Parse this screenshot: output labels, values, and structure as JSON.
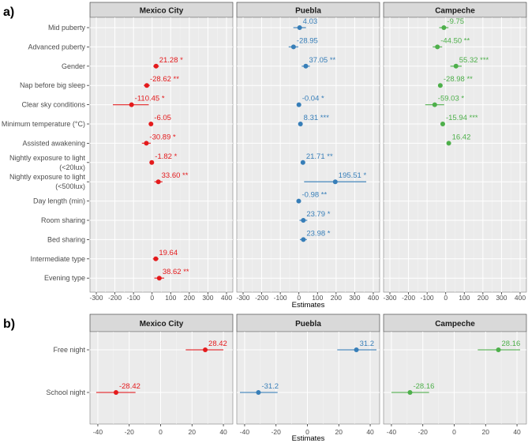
{
  "colors": {
    "Mexico City": "#E41A1C",
    "Puebla": "#377EB8",
    "Campeche": "#4DAF4A"
  },
  "chart_data": [
    {
      "panel_label": "a)",
      "type": "forest",
      "xlabel": "Estimates",
      "xlim": [
        -334,
        434
      ],
      "xticks": [
        -300,
        -200,
        -100,
        0,
        100,
        200,
        300,
        400
      ],
      "grid": true,
      "rows": [
        [
          "Mid puberty"
        ],
        [
          "Advanced puberty"
        ],
        [
          "Gender"
        ],
        [
          "Nap before big sleep"
        ],
        [
          "Clear sky conditions"
        ],
        [
          "Minimum temperature (°C)"
        ],
        [
          "Assisted awakening"
        ],
        [
          "Nightly exposure to light",
          "(<20lux)"
        ],
        [
          "Nightly exposure to light",
          "(<500lux)"
        ],
        [
          "Day length (min)"
        ],
        [
          "Room sharing"
        ],
        [
          "Bed sharing"
        ],
        [
          "Intermediate type"
        ],
        [
          "Evening type"
        ]
      ],
      "facets": [
        {
          "name": "Mexico City",
          "points": [
            {
              "row": 2,
              "est": 21.28,
              "lo": 6,
              "hi": 37,
              "label": "21.28 *"
            },
            {
              "row": 3,
              "est": -28.62,
              "lo": -45,
              "hi": -12,
              "label": "-28.62 **"
            },
            {
              "row": 4,
              "est": -110.45,
              "lo": -211,
              "hi": -18,
              "label": "-110.45 *"
            },
            {
              "row": 5,
              "est": -6.05,
              "lo": -12,
              "hi": 0,
              "label": "-6.05"
            },
            {
              "row": 6,
              "est": -30.89,
              "lo": -55,
              "hi": -7,
              "label": "-30.89 *"
            },
            {
              "row": 7,
              "est": -1.82,
              "lo": -5,
              "hi": 1,
              "label": "-1.82 *"
            },
            {
              "row": 8,
              "est": 33.6,
              "lo": 12,
              "hi": 56,
              "label": "33.60 **"
            },
            {
              "row": 12,
              "est": 19.64,
              "lo": 4,
              "hi": 35,
              "label": "19.64"
            },
            {
              "row": 13,
              "est": 38.62,
              "lo": 12,
              "hi": 65,
              "label": "38.62 **"
            }
          ]
        },
        {
          "name": "Puebla",
          "points": [
            {
              "row": 0,
              "est": 4.03,
              "lo": -30,
              "hi": 38,
              "label": "4.03"
            },
            {
              "row": 1,
              "est": -28.95,
              "lo": -55,
              "hi": -3,
              "label": "-28.95"
            },
            {
              "row": 2,
              "est": 37.05,
              "lo": 15,
              "hi": 59,
              "label": "37.05 **"
            },
            {
              "row": 4,
              "est": -0.04,
              "lo": -1,
              "hi": 1,
              "label": "-0.04 *"
            },
            {
              "row": 5,
              "est": 8.31,
              "lo": 6,
              "hi": 11,
              "label": "8.31 ***"
            },
            {
              "row": 7,
              "est": 21.71,
              "lo": 12,
              "hi": 32,
              "label": "21.71 **"
            },
            {
              "row": 8,
              "est": 195.51,
              "lo": 28,
              "hi": 362,
              "label": "195.51 *"
            },
            {
              "row": 9,
              "est": -0.98,
              "lo": -2,
              "hi": 0,
              "label": "-0.98 **"
            },
            {
              "row": 10,
              "est": 23.79,
              "lo": 3,
              "hi": 45,
              "label": "23.79 *"
            },
            {
              "row": 11,
              "est": 23.98,
              "lo": 5,
              "hi": 43,
              "label": "23.98 *"
            }
          ]
        },
        {
          "name": "Campeche",
          "points": [
            {
              "row": 0,
              "est": -9.75,
              "lo": -35,
              "hi": 15,
              "label": "-9.75"
            },
            {
              "row": 1,
              "est": -44.5,
              "lo": -70,
              "hi": -19,
              "label": "-44.50 **"
            },
            {
              "row": 2,
              "est": 55.32,
              "lo": 25,
              "hi": 86,
              "label": "55.32 ***"
            },
            {
              "row": 3,
              "est": -28.98,
              "lo": -40,
              "hi": -18,
              "label": "-28.98 **"
            },
            {
              "row": 4,
              "est": -59.03,
              "lo": -110,
              "hi": -8,
              "label": "-59.03 *"
            },
            {
              "row": 5,
              "est": -15.94,
              "lo": -20,
              "hi": -12,
              "label": "-15.94 ***"
            },
            {
              "row": 6,
              "est": 16.42,
              "lo": 10,
              "hi": 23,
              "label": "16.42"
            }
          ]
        }
      ]
    },
    {
      "panel_label": "b)",
      "type": "forest",
      "xlabel": "Estimates",
      "xlim": [
        -45,
        46
      ],
      "xticks": [
        -40,
        -20,
        0,
        20,
        40
      ],
      "grid": true,
      "rows": [
        [
          "Free night"
        ],
        [
          "School night"
        ]
      ],
      "facets": [
        {
          "name": "Mexico City",
          "points": [
            {
              "row": 0,
              "est": 28.42,
              "lo": 16,
              "hi": 40,
              "label": "28.42"
            },
            {
              "row": 1,
              "est": -28.42,
              "lo": -41,
              "hi": -16,
              "label": "-28.42"
            }
          ]
        },
        {
          "name": "Puebla",
          "points": [
            {
              "row": 0,
              "est": 31.2,
              "lo": 19,
              "hi": 44,
              "label": "31.2"
            },
            {
              "row": 1,
              "est": -31.2,
              "lo": -43,
              "hi": -19,
              "label": "-31.2"
            }
          ]
        },
        {
          "name": "Campeche",
          "points": [
            {
              "row": 0,
              "est": 28.16,
              "lo": 15,
              "hi": 42,
              "label": "28.16"
            },
            {
              "row": 1,
              "est": -28.16,
              "lo": -40,
              "hi": -16,
              "label": "-28.16"
            }
          ]
        }
      ]
    }
  ]
}
